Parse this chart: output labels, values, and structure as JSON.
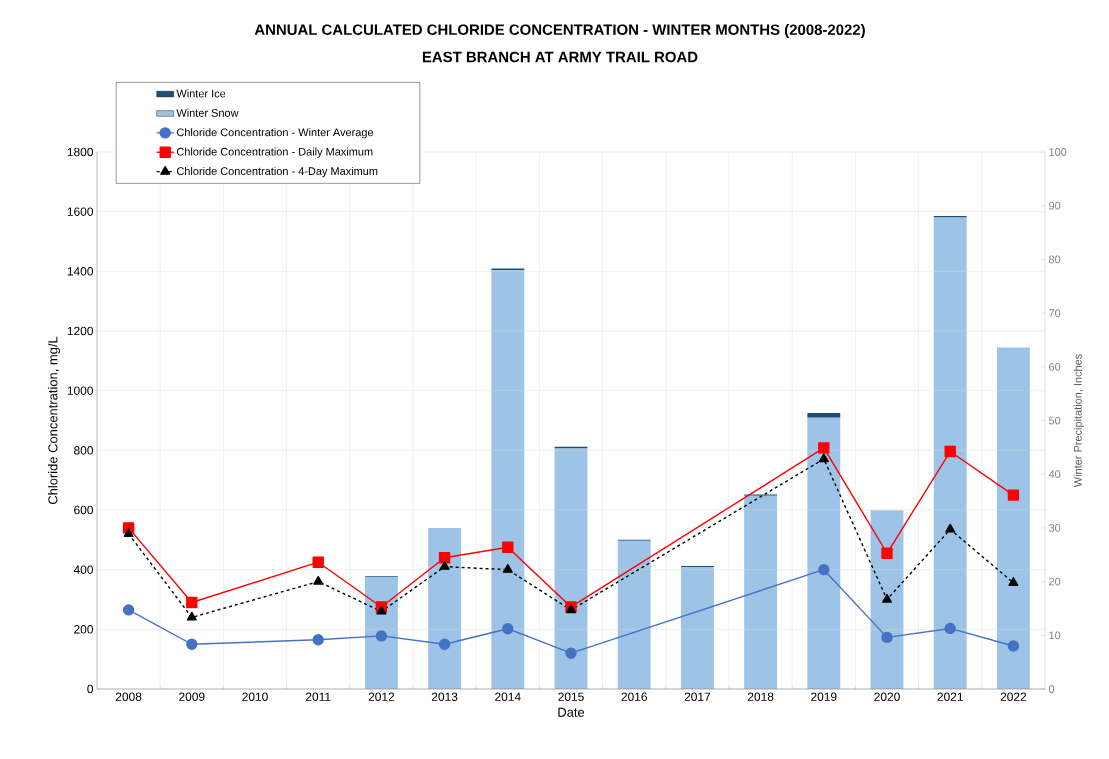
{
  "chart_data": {
    "type": "line",
    "title": "ANNUAL CALCULATED CHLORIDE CONCENTRATION - WINTER MONTHS (2008-2022)",
    "subtitle": "EAST BRANCH AT ARMY TRAIL ROAD",
    "xlabel": "Date",
    "ylabel": "Chloride Concentration, mg/L",
    "y2label": "Winter Precipitation, Inches",
    "categories": [
      "2008",
      "2009",
      "2010",
      "2011",
      "2012",
      "2013",
      "2014",
      "2015",
      "2016",
      "2017",
      "2018",
      "2019",
      "2020",
      "2021",
      "2022"
    ],
    "series": [
      {
        "name": "Winter Snow",
        "type": "bar",
        "axis": "y2",
        "color": "#9dc3e6",
        "values": [
          null,
          null,
          null,
          null,
          20.8,
          30.0,
          78.0,
          44.8,
          27.6,
          22.7,
          36.0,
          50.5,
          33.3,
          87.8,
          63.6
        ]
      },
      {
        "name": "Winter Ice",
        "type": "bar",
        "axis": "y2",
        "color": "#1f4e79",
        "values": [
          null,
          null,
          null,
          null,
          0.2,
          0,
          0.3,
          0.3,
          0.2,
          0.2,
          0.2,
          0.9,
          null,
          0.3,
          null
        ]
      },
      {
        "name": "Chloride Concentration - Winter Average",
        "color": "#4472c4",
        "marker": "circle",
        "line_style": "solid",
        "values": [
          265,
          150,
          null,
          165,
          178,
          150,
          202,
          120,
          null,
          null,
          null,
          400,
          173,
          203,
          144
        ]
      },
      {
        "name": "Chloride Concentration - Daily Maximum",
        "color": "#ff0000",
        "marker": "square",
        "line_style": "solid",
        "values": [
          540,
          290,
          null,
          425,
          275,
          440,
          475,
          275,
          null,
          null,
          null,
          808,
          455,
          796,
          650
        ]
      },
      {
        "name": "Chloride Concentration - 4-Day Maximum",
        "color": "#000000",
        "marker": "triangle",
        "line_style": "dashed",
        "values": [
          520,
          240,
          null,
          360,
          260,
          410,
          400,
          265,
          null,
          null,
          null,
          771,
          300,
          535,
          356
        ]
      }
    ],
    "stacked": true,
    "ylim": [
      0,
      1800
    ],
    "yticks": [
      0,
      200,
      400,
      600,
      800,
      1000,
      1200,
      1400,
      1600,
      1800
    ],
    "y2lim": [
      0,
      100
    ],
    "y2ticks": [
      0,
      10,
      20,
      30,
      40,
      50,
      60,
      70,
      80,
      90,
      100
    ],
    "grid": true,
    "legend": "top left"
  }
}
